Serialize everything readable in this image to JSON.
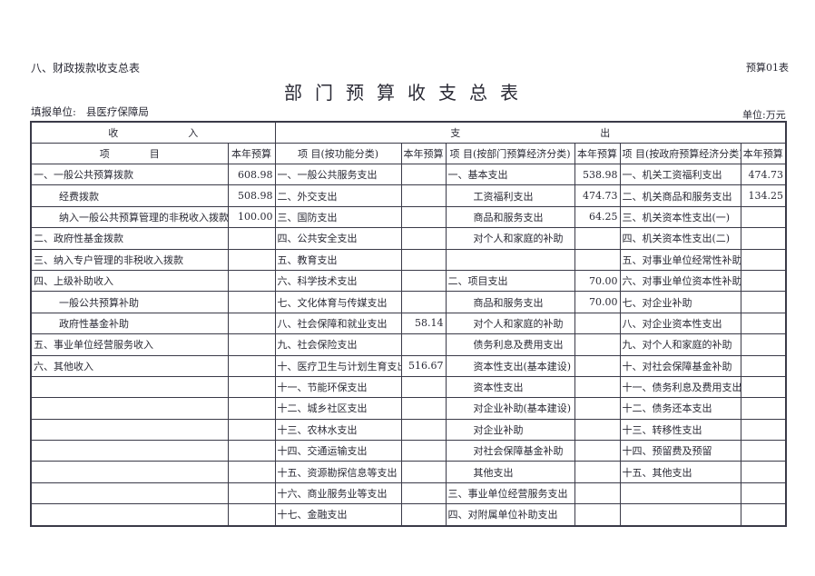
{
  "header": {
    "section_title": "八、财政拨款收支总表",
    "form_no": "预算01表",
    "title": "部门预算收支总表",
    "filling_unit_label": "填报单位:",
    "filling_unit": "县医疗保障局",
    "currency_unit": "单位:万元"
  },
  "table": {
    "group_income": "收　　　　　　　入",
    "group_expense": "支　　　　　　　　　　　　　　出",
    "columns": [
      "项　　　　目",
      "本年预算",
      "项 目(按功能分类)",
      "本年预算",
      "项 目(按部门预算经济分类)",
      "本年预算",
      "项 目(按政府预算经济分类)",
      "本年预算"
    ],
    "rows": [
      [
        "一、一般公共预算拨款",
        "608.98",
        "一、一般公共服务支出",
        "",
        "一、基本支出",
        "538.98",
        "一、机关工资福利支出",
        "474.73"
      ],
      [
        "经费拨款",
        "508.98",
        "二、外交支出",
        "",
        "工资福利支出",
        "474.73",
        "二、机关商品和服务支出",
        "134.25"
      ],
      [
        "纳入一般公共预算管理的非税收入拨款",
        "100.00",
        "三、国防支出",
        "",
        "商品和服务支出",
        "64.25",
        "三、机关资本性支出(一)",
        ""
      ],
      [
        "二、政府性基金拨款",
        "",
        "四、公共安全支出",
        "",
        "对个人和家庭的补助",
        "",
        "四、机关资本性支出(二)",
        ""
      ],
      [
        "三、纳入专户管理的非税收入拨款",
        "",
        "五、教育支出",
        "",
        "",
        "",
        "五、对事业单位经常性补助",
        ""
      ],
      [
        "四、上级补助收入",
        "",
        "六、科学技术支出",
        "",
        "二、项目支出",
        "70.00",
        "六、对事业单位资本性补助",
        ""
      ],
      [
        "一般公共预算补助",
        "",
        "七、文化体育与传媒支出",
        "",
        "商品和服务支出",
        "70.00",
        "七、对企业补助",
        ""
      ],
      [
        "政府性基金补助",
        "",
        "八、社会保障和就业支出",
        "58.14",
        "对个人和家庭的补助",
        "",
        "八、对企业资本性支出",
        ""
      ],
      [
        "五、事业单位经营服务收入",
        "",
        "九、社会保险支出",
        "",
        "债务利息及费用支出",
        "",
        "九、对个人和家庭的补助",
        ""
      ],
      [
        "六、其他收入",
        "",
        "十、医疗卫生与计划生育支出",
        "516.67",
        "资本性支出(基本建设)",
        "",
        "十、对社会保障基金补助",
        ""
      ],
      [
        "",
        "",
        "十一、节能环保支出",
        "",
        "资本性支出",
        "",
        "十一、债务利息及费用支出",
        ""
      ],
      [
        "",
        "",
        "十二、城乡社区支出",
        "",
        "对企业补助(基本建设)",
        "",
        "十二、债务还本支出",
        ""
      ],
      [
        "",
        "",
        "十三、农林水支出",
        "",
        "对企业补助",
        "",
        "十三、转移性支出",
        ""
      ],
      [
        "",
        "",
        "十四、交通运输支出",
        "",
        "对社会保障基金补助",
        "",
        "十四、预留费及预留",
        ""
      ],
      [
        "",
        "",
        "十五、资源勘探信息等支出",
        "",
        "其他支出",
        "",
        "十五、其他支出",
        ""
      ],
      [
        "",
        "",
        "十六、商业服务业等支出",
        "",
        "三、事业单位经营服务支出",
        "",
        "",
        ""
      ],
      [
        "",
        "",
        "十七、金融支出",
        "",
        "四、对附属单位补助支出",
        "",
        "",
        ""
      ]
    ]
  }
}
